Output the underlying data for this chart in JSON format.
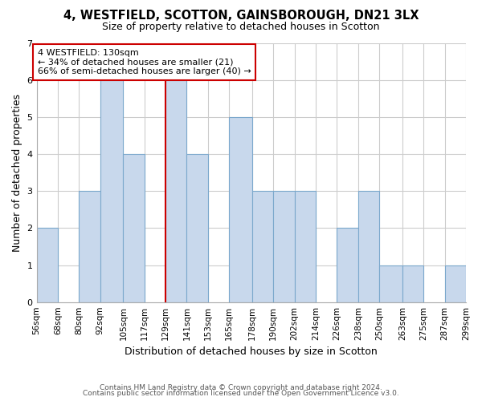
{
  "title1": "4, WESTFIELD, SCOTTON, GAINSBOROUGH, DN21 3LX",
  "title2": "Size of property relative to detached houses in Scotton",
  "xlabel": "Distribution of detached houses by size in Scotton",
  "ylabel": "Number of detached properties",
  "bar_edges": [
    56,
    68,
    80,
    92,
    105,
    117,
    129,
    141,
    153,
    165,
    178,
    190,
    202,
    214,
    226,
    238,
    250,
    263,
    275,
    287,
    299
  ],
  "bar_heights": [
    2,
    0,
    3,
    6,
    4,
    0,
    6,
    4,
    0,
    5,
    3,
    3,
    3,
    0,
    2,
    3,
    1,
    1,
    0,
    1
  ],
  "bar_color": "#c8d8ec",
  "bar_edgecolor": "#7ba8cc",
  "ref_line_x": 129,
  "ref_line_color": "#cc0000",
  "ylim": [
    0,
    7
  ],
  "yticks": [
    0,
    1,
    2,
    3,
    4,
    5,
    6,
    7
  ],
  "annotation_title": "4 WESTFIELD: 130sqm",
  "annotation_line1": "← 34% of detached houses are smaller (21)",
  "annotation_line2": "66% of semi-detached houses are larger (40) →",
  "annotation_box_facecolor": "#ffffff",
  "annotation_box_edgecolor": "#cc0000",
  "footer1": "Contains HM Land Registry data © Crown copyright and database right 2024.",
  "footer2": "Contains public sector information licensed under the Open Government Licence v3.0.",
  "background_color": "#ffffff",
  "grid_color": "#cccccc"
}
